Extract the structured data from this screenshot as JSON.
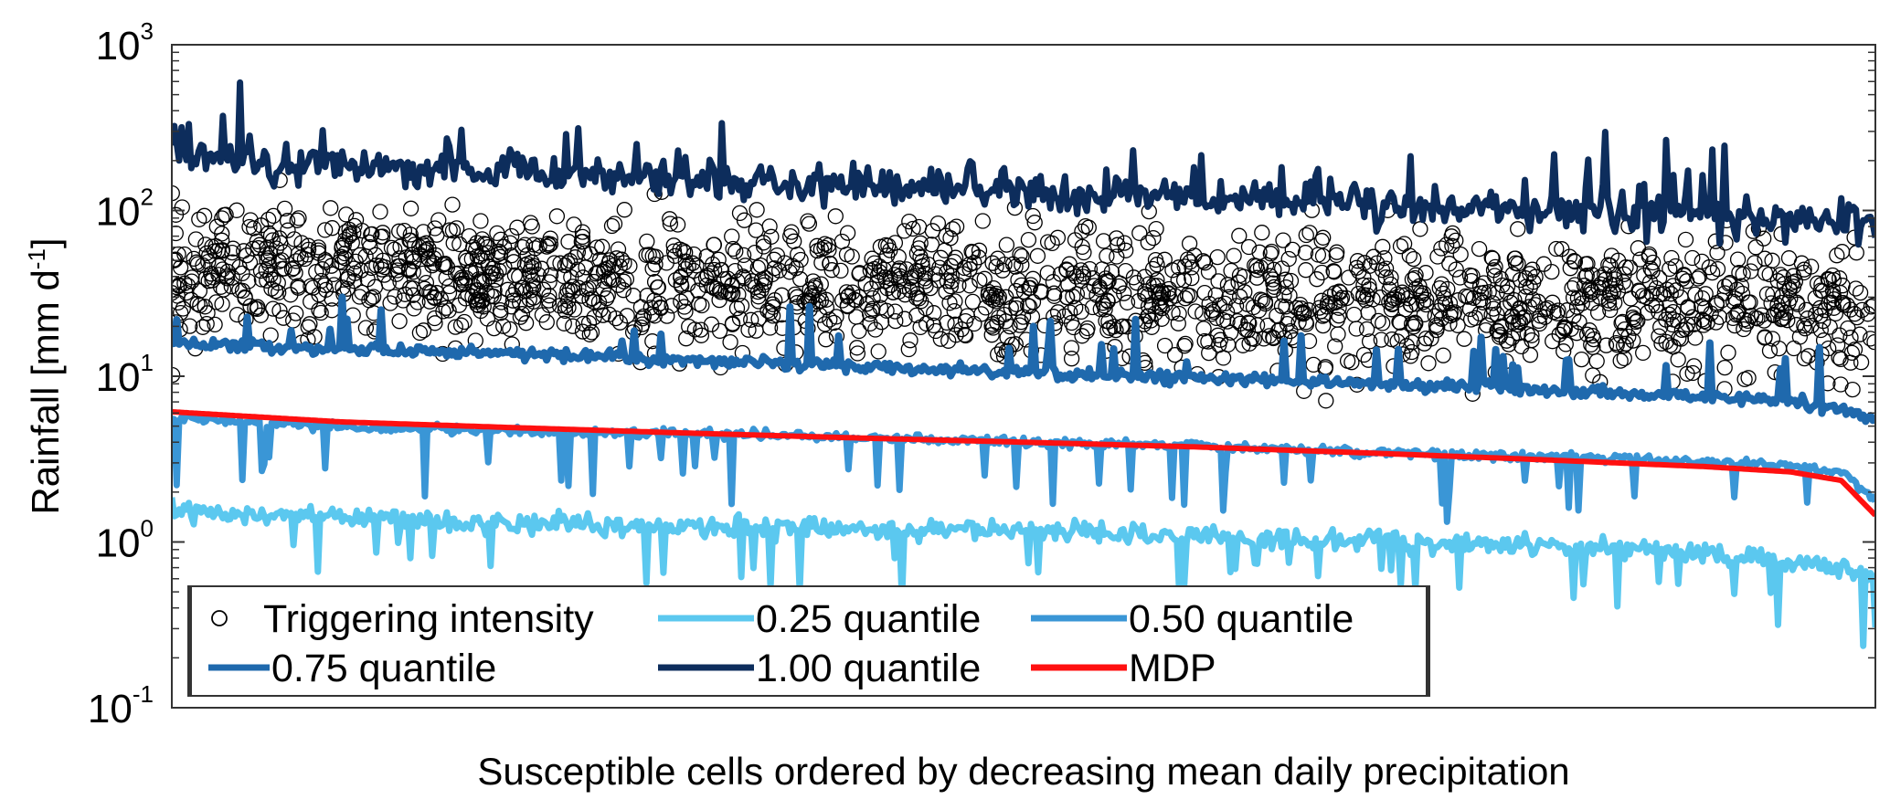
{
  "chart_data": {
    "type": "line",
    "title": "",
    "xlabel": "Susceptible cells ordered by decreasing mean daily precipitation",
    "ylabel": "Rainfall [mm d",
    "ylabel_exp": "-1",
    "ylabel_close": "]",
    "yscale": "log",
    "ylim": [
      0.1,
      1000
    ],
    "xlim": [
      0,
      1
    ],
    "grid": false,
    "legend_position": "bottom-left",
    "y_ticks": [
      {
        "base": "10",
        "exp": "-1"
      },
      {
        "base": "10",
        "exp": "0"
      },
      {
        "base": "10",
        "exp": "1"
      },
      {
        "base": "10",
        "exp": "2"
      },
      {
        "base": "10",
        "exp": "3"
      }
    ],
    "x": [
      0,
      0.1,
      0.2,
      0.3,
      0.4,
      0.5,
      0.6,
      0.7,
      0.8,
      0.9,
      0.95,
      0.98,
      1.0
    ],
    "series": [
      {
        "name": "0.25 quantile",
        "color": "#5bc8ef",
        "width": 7,
        "noise": 0.09,
        "spikes": "down",
        "values": [
          1.55,
          1.4,
          1.3,
          1.25,
          1.2,
          1.15,
          1.1,
          1.0,
          0.95,
          0.85,
          0.75,
          0.7,
          0.62
        ]
      },
      {
        "name": "0.50 quantile",
        "color": "#3a96d6",
        "width": 7,
        "noise": 0.04,
        "spikes": "down",
        "values": [
          5.6,
          5.0,
          4.7,
          4.5,
          4.3,
          4.0,
          3.8,
          3.5,
          3.3,
          3.05,
          2.9,
          2.6,
          1.8
        ]
      },
      {
        "name": "0.75 quantile",
        "color": "#1f69ad",
        "width": 8,
        "noise": 0.05,
        "spikes": "up",
        "values": [
          16.0,
          14.5,
          13.5,
          12.5,
          11.5,
          10.5,
          9.8,
          9.0,
          8.3,
          7.5,
          7.0,
          6.3,
          5.3
        ]
      },
      {
        "name": "1.00 quantile",
        "color": "#0d2d5c",
        "width": 7,
        "noise": 0.16,
        "spikes": "up",
        "values": [
          210,
          185,
          170,
          155,
          140,
          130,
          120,
          110,
          100,
          92,
          88,
          85,
          80
        ]
      },
      {
        "name": "MDP",
        "color": "#ff1010",
        "width": 6,
        "noise": 0,
        "spikes": "none",
        "values": [
          6.1,
          5.3,
          4.9,
          4.55,
          4.25,
          4.0,
          3.75,
          3.45,
          3.15,
          2.85,
          2.65,
          2.35,
          1.45
        ]
      }
    ],
    "scatter": {
      "name": "Triggering intensity",
      "color": "#000000",
      "count": 1900,
      "median_start": 45,
      "median_end": 25,
      "spread_log10": 0.28,
      "min": 1.0,
      "max": 200
    },
    "legend": [
      {
        "label": "Triggering intensity",
        "kind": "marker",
        "color": "#000000"
      },
      {
        "label": "0.25 quantile",
        "kind": "line",
        "color": "#5bc8ef"
      },
      {
        "label": "0.50 quantile",
        "kind": "line",
        "color": "#3a96d6"
      },
      {
        "label": "0.75 quantile",
        "kind": "line",
        "color": "#1f69ad"
      },
      {
        "label": "1.00 quantile",
        "kind": "line",
        "color": "#0d2d5c"
      },
      {
        "label": "MDP",
        "kind": "line",
        "color": "#ff1010"
      }
    ]
  }
}
